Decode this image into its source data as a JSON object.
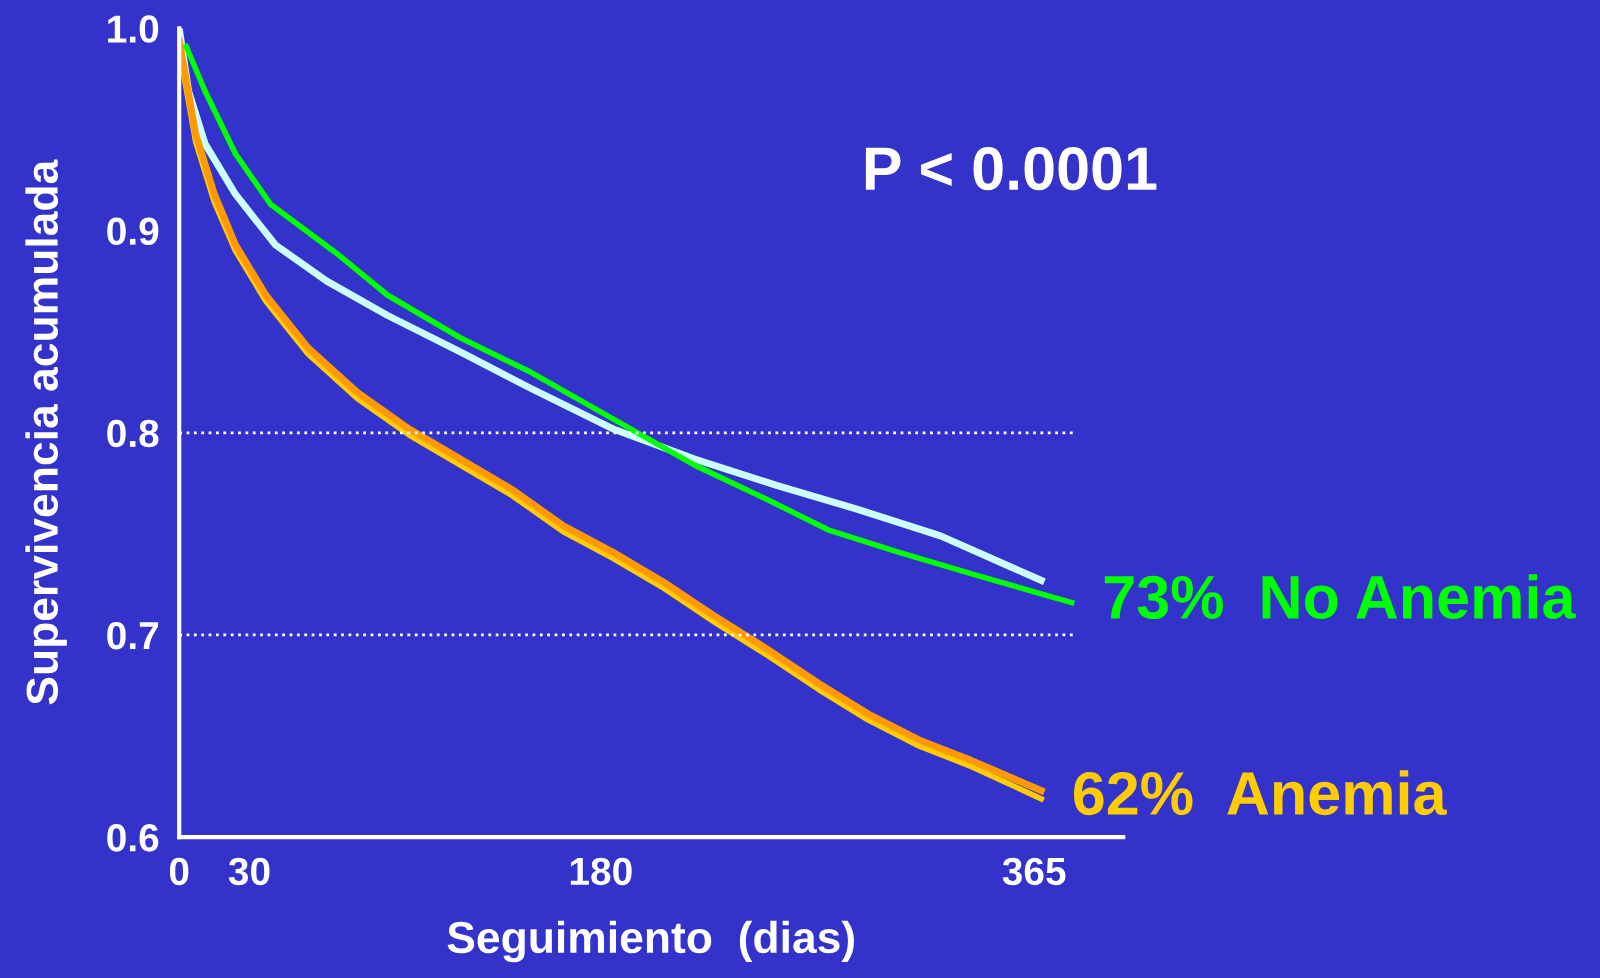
{
  "chart_data": {
    "type": "line",
    "xlabel": "Seguimiento  (dias)",
    "ylabel": "Supervivencia acumulada",
    "xlim": [
      0,
      403
    ],
    "xticks": [
      0,
      30,
      180,
      365
    ],
    "ylim": [
      0.6,
      1.0
    ],
    "yticks": [
      {
        "value": 0.6,
        "label": "0.6"
      },
      {
        "value": 0.7,
        "label": "0.7"
      },
      {
        "value": 0.8,
        "label": "0.8"
      },
      {
        "value": 0.9,
        "label": "0.9"
      },
      {
        "value": 1.0,
        "label": "1.0"
      }
    ],
    "grid": false,
    "legend": false,
    "marker": "none",
    "line_style": "solid",
    "ref_lines": [
      {
        "axis": "y",
        "value": 0.8,
        "color": "#ffffff",
        "line_style": "dotted"
      },
      {
        "axis": "y",
        "value": 0.7,
        "color": "#ffffff",
        "line_style": "dotted"
      }
    ],
    "annotations": [
      "P < 0.0001"
    ],
    "series": [
      {
        "color": "#ccffff",
        "x": [
          0,
          4,
          11,
          24,
          41,
          63,
          89,
          120,
          150,
          185,
          220,
          255,
          290,
          325,
          368
        ],
        "values": [
          1.0,
          0.969,
          0.943,
          0.918,
          0.893,
          0.875,
          0.858,
          0.84,
          0.822,
          0.802,
          0.787,
          0.774,
          0.762,
          0.749,
          0.727
        ]
      },
      {
        "color": "#ffcc00",
        "name": "62%  Anemia",
        "x": [
          0,
          7,
          15,
          24,
          37,
          55,
          76,
          98,
          120,
          142,
          164,
          185,
          207,
          229,
          251,
          273,
          294,
          316,
          338,
          368
        ],
        "values": [
          0.99,
          0.944,
          0.914,
          0.89,
          0.865,
          0.839,
          0.817,
          0.799,
          0.784,
          0.769,
          0.751,
          0.738,
          0.723,
          0.706,
          0.69,
          0.673,
          0.658,
          0.645,
          0.635,
          0.619
        ]
      },
      {
        "color": "#ff9900",
        "x": [
          0,
          7,
          15,
          24,
          37,
          55,
          76,
          98,
          120,
          142,
          164,
          185,
          207,
          229,
          251,
          273,
          294,
          316,
          338,
          368
        ],
        "values": [
          0.994,
          0.948,
          0.918,
          0.893,
          0.868,
          0.842,
          0.82,
          0.802,
          0.787,
          0.772,
          0.754,
          0.741,
          0.726,
          0.709,
          0.693,
          0.676,
          0.661,
          0.648,
          0.638,
          0.623
        ]
      },
      {
        "color": "#00ff00",
        "name": "73%  No Anemia",
        "x": [
          3,
          11,
          24,
          39,
          68,
          89,
          120,
          150,
          185,
          220,
          251,
          277,
          307,
          342,
          381
        ],
        "values": [
          0.991,
          0.969,
          0.938,
          0.913,
          0.888,
          0.868,
          0.847,
          0.83,
          0.807,
          0.784,
          0.767,
          0.752,
          0.741,
          0.729,
          0.716
        ]
      }
    ]
  }
}
